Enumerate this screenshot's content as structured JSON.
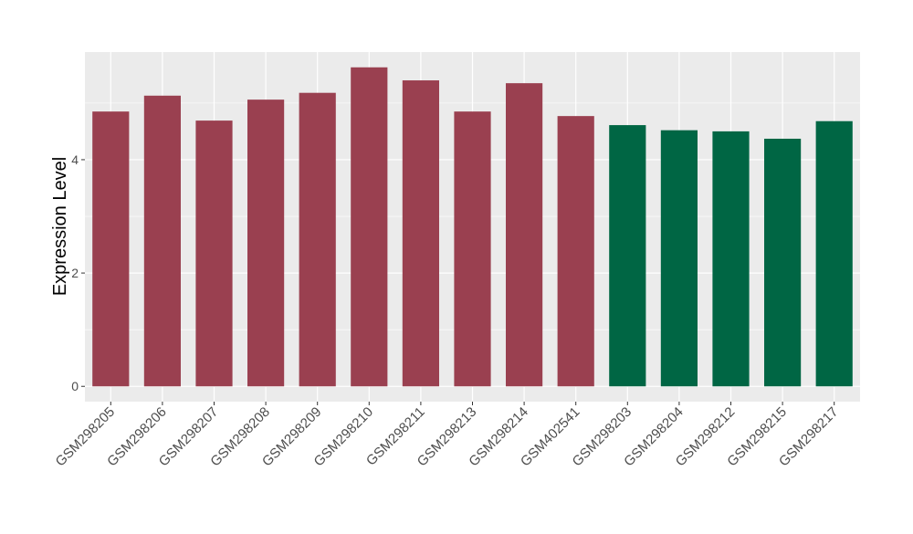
{
  "chart_data": {
    "type": "bar",
    "title": "",
    "xlabel": "",
    "ylabel": "Expression Level",
    "ylim": [
      -0.27,
      5.9
    ],
    "yticks": [
      0,
      2,
      4
    ],
    "grid": true,
    "legend": "none",
    "categories": [
      "GSM298205",
      "GSM298206",
      "GSM298207",
      "GSM298208",
      "GSM298209",
      "GSM298210",
      "GSM298211",
      "GSM298213",
      "GSM298214",
      "GSM402541",
      "GSM298203",
      "GSM298204",
      "GSM298212",
      "GSM298215",
      "GSM298217"
    ],
    "values": [
      4.85,
      5.13,
      4.69,
      5.06,
      5.18,
      5.63,
      5.4,
      4.85,
      5.35,
      4.77,
      4.61,
      4.52,
      4.5,
      4.37,
      4.68
    ],
    "groups": [
      0,
      0,
      0,
      0,
      0,
      0,
      0,
      0,
      0,
      0,
      1,
      1,
      1,
      1,
      1
    ],
    "colors": [
      "#9a4050",
      "#006644"
    ],
    "panel_background": "#ebebeb"
  }
}
